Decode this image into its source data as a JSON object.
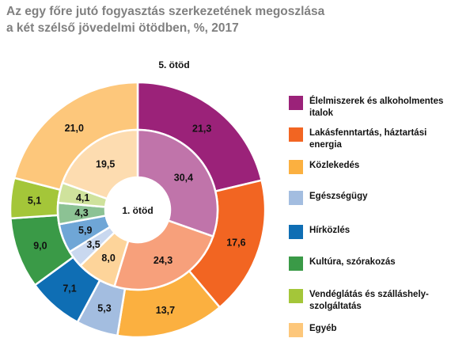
{
  "title_lines": [
    "Az egy főre jutó fogyasztás szerkezetének megoszlása",
    "a két szélső jövedelmi ötödben, %, 2017"
  ],
  "chart_data": {
    "type": "pie",
    "variant": "nested-donut",
    "categories": [
      "Élelmiszerek és alkoholmentes italok",
      "Lakásfenntartás, háztartási energia",
      "Közlekedés",
      "Egészségügy",
      "Hírközlés",
      "Kultúra, szórakozás",
      "Vendéglátás és szálláshely-szolgáltatás",
      "Egyéb"
    ],
    "series": [
      {
        "name": "5. ötöd",
        "ring": "outer",
        "values": [
          21.3,
          17.6,
          13.7,
          5.3,
          7.1,
          9.0,
          5.1,
          21.0
        ],
        "labels": [
          "21,3",
          "17,6",
          "13,7",
          "5,3",
          "7,1",
          "9,0",
          "5,1",
          "21,0"
        ],
        "colors": [
          "#9b2279",
          "#f26522",
          "#fbb040",
          "#a3bde0",
          "#0f6eb4",
          "#3a9a47",
          "#a4c639",
          "#fdc77b"
        ]
      },
      {
        "name": "1. ötöd",
        "ring": "inner",
        "values": [
          30.4,
          24.3,
          8.0,
          3.5,
          5.9,
          4.3,
          4.1,
          19.5
        ],
        "labels": [
          "30,4",
          "24,3",
          "8,0",
          "3,5",
          "5,9",
          "4,3",
          "4,1",
          "19,5"
        ],
        "colors": [
          "#c074aa",
          "#f7a07b",
          "#fdd49a",
          "#c9d8ef",
          "#6fa6d6",
          "#8cc294",
          "#cfe29c",
          "#fddcb0"
        ]
      }
    ],
    "legend": {
      "position": "right",
      "items": [
        {
          "label": "Élelmiszerek és alkoholmentes italok",
          "color": "#9b2279"
        },
        {
          "label": "Lakásfenntartás, háztartási energia",
          "color": "#f26522"
        },
        {
          "label": "Közlekedés",
          "color": "#fbb040"
        },
        {
          "label": "Egészségügy",
          "color": "#a3bde0"
        },
        {
          "label": "Hírközlés",
          "color": "#0f6eb4"
        },
        {
          "label": "Kultúra, szórakozás",
          "color": "#3a9a47"
        },
        {
          "label": "Vendéglátás és szálláshely-szolgáltatás",
          "color": "#a4c639"
        },
        {
          "label": "Egyéb",
          "color": "#fdc77b"
        }
      ]
    }
  }
}
